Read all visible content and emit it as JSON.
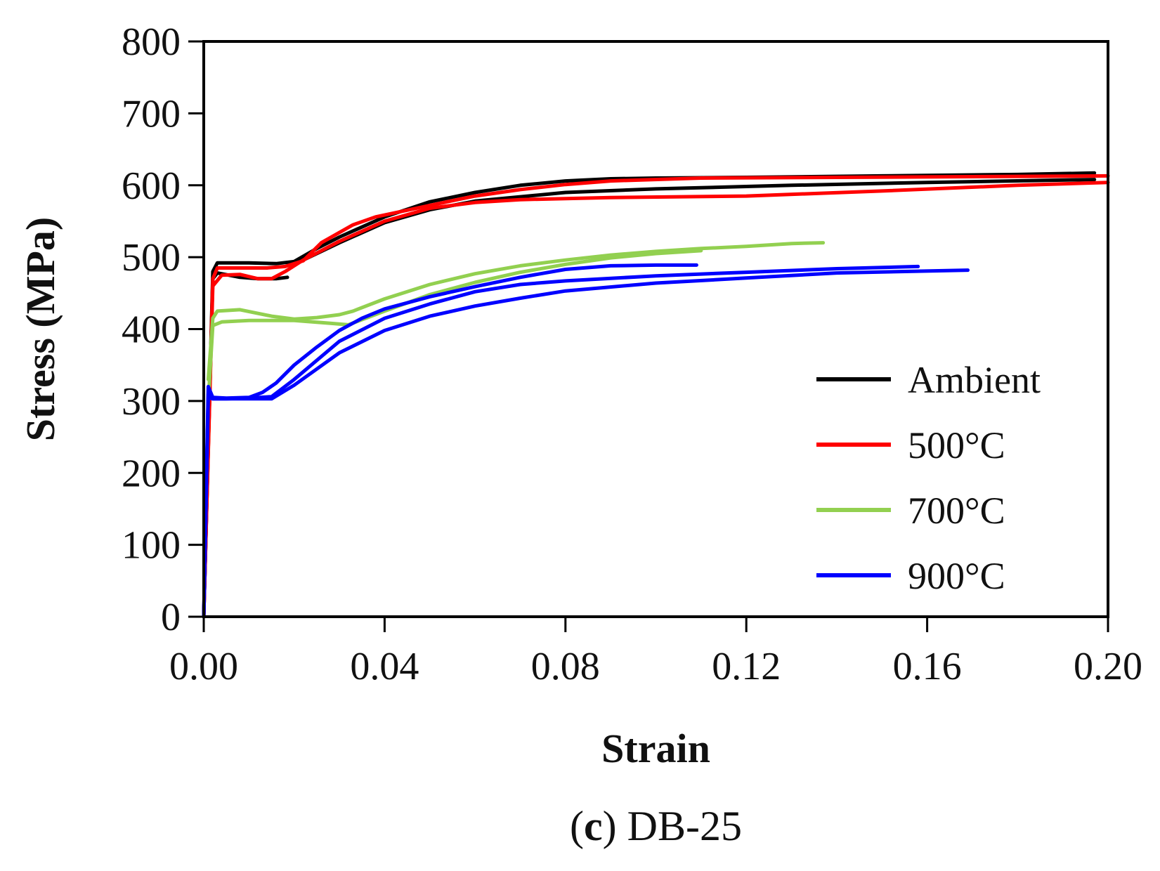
{
  "chart_data": {
    "type": "line",
    "title": "",
    "caption": {
      "open": "(",
      "letter": "c",
      "close": ")",
      "text": " DB-25"
    },
    "xlabel": "Strain",
    "ylabel": "Stress (MPa)",
    "xlim": [
      0,
      0.2
    ],
    "ylim": [
      0,
      800
    ],
    "xticks": [
      0.0,
      0.04,
      0.08,
      0.12,
      0.16,
      0.2
    ],
    "xtick_labels": [
      "0.00",
      "0.04",
      "0.08",
      "0.12",
      "0.16",
      "0.20"
    ],
    "yticks": [
      0,
      100,
      200,
      300,
      400,
      500,
      600,
      700,
      800
    ],
    "ytick_labels": [
      "0",
      "100",
      "200",
      "300",
      "400",
      "500",
      "600",
      "700",
      "800"
    ],
    "grid": false,
    "legend_position": "right",
    "series": [
      {
        "name": "Ambient",
        "color": "#000000",
        "legend": true,
        "x": [
          0.0,
          0.002,
          0.003,
          0.01,
          0.016,
          0.02,
          0.025,
          0.03,
          0.04,
          0.05,
          0.06,
          0.07,
          0.08,
          0.09,
          0.1,
          0.12,
          0.15,
          0.18,
          0.197
        ],
        "y": [
          0,
          480,
          492,
          492,
          491,
          494,
          512,
          528,
          556,
          577,
          590,
          600,
          606,
          609,
          610,
          611,
          613,
          615,
          617
        ]
      },
      {
        "name": "Ambient",
        "color": "#000000",
        "legend": false,
        "x": [
          0.0,
          0.002,
          0.003,
          0.008,
          0.012,
          0.016,
          0.0185
        ],
        "y": [
          0,
          470,
          478,
          472,
          470,
          470,
          472
        ]
      },
      {
        "name": "Ambient",
        "color": "#000000",
        "legend": false,
        "x": [
          0.02,
          0.03,
          0.04,
          0.05,
          0.06,
          0.08,
          0.1,
          0.13,
          0.16,
          0.197
        ],
        "y": [
          490,
          520,
          548,
          566,
          578,
          590,
          595,
          600,
          604,
          608
        ]
      },
      {
        "name": "500°C",
        "color": "#ff0000",
        "legend": true,
        "x": [
          0.0,
          0.002,
          0.003,
          0.008,
          0.014,
          0.018,
          0.022,
          0.026,
          0.033,
          0.038,
          0.05,
          0.06,
          0.07,
          0.08,
          0.09,
          0.11,
          0.14,
          0.17,
          0.2
        ],
        "y": [
          0,
          470,
          485,
          485,
          485,
          487,
          495,
          520,
          545,
          556,
          572,
          585,
          594,
          601,
          606,
          610,
          611,
          612,
          613
        ]
      },
      {
        "name": "500°C",
        "color": "#ff0000",
        "legend": false,
        "x": [
          0.0,
          0.002,
          0.004,
          0.008,
          0.012,
          0.015,
          0.018,
          0.022,
          0.03,
          0.04,
          0.05,
          0.06,
          0.07,
          0.09,
          0.12,
          0.15,
          0.18,
          0.2
        ],
        "y": [
          0,
          460,
          475,
          476,
          470,
          470,
          480,
          496,
          522,
          550,
          568,
          576,
          580,
          583,
          585,
          592,
          600,
          604
        ]
      },
      {
        "name": "700°C",
        "color": "#92d050",
        "legend": true,
        "x": [
          0.001,
          0.002,
          0.003,
          0.008,
          0.015,
          0.02,
          0.025,
          0.03,
          0.033,
          0.04,
          0.05,
          0.06,
          0.07,
          0.08,
          0.09,
          0.1,
          0.11,
          0.12,
          0.13,
          0.137
        ],
        "y": [
          330,
          415,
          425,
          427,
          418,
          414,
          416,
          420,
          425,
          442,
          462,
          477,
          488,
          496,
          503,
          508,
          512,
          515,
          519,
          520
        ]
      },
      {
        "name": "700°C",
        "color": "#92d050",
        "legend": false,
        "x": [
          0.001,
          0.002,
          0.004,
          0.01,
          0.02,
          0.028,
          0.032,
          0.04,
          0.05,
          0.06,
          0.07,
          0.08,
          0.09,
          0.1,
          0.11
        ],
        "y": [
          300,
          405,
          410,
          412,
          412,
          408,
          406,
          425,
          448,
          465,
          479,
          490,
          499,
          505,
          509
        ]
      },
      {
        "name": "900°C",
        "color": "#0000ff",
        "legend": true,
        "x": [
          0.0,
          0.001,
          0.002,
          0.005,
          0.01,
          0.013,
          0.016,
          0.02,
          0.025,
          0.03,
          0.035,
          0.04,
          0.05,
          0.06,
          0.07,
          0.08,
          0.09,
          0.1,
          0.109
        ],
        "y": [
          0,
          320,
          305,
          304,
          305,
          312,
          325,
          350,
          375,
          398,
          415,
          428,
          445,
          459,
          472,
          483,
          488,
          489,
          489
        ]
      },
      {
        "name": "900°C",
        "color": "#0000ff",
        "legend": false,
        "x": [
          0.0,
          0.001,
          0.002,
          0.005,
          0.01,
          0.015,
          0.02,
          0.03,
          0.04,
          0.05,
          0.06,
          0.07,
          0.08,
          0.1,
          0.12,
          0.14,
          0.158
        ],
        "y": [
          0,
          310,
          303,
          303,
          304,
          306,
          330,
          383,
          415,
          435,
          452,
          462,
          467,
          474,
          479,
          484,
          487
        ]
      },
      {
        "name": "900°C",
        "color": "#0000ff",
        "legend": false,
        "x": [
          0.0,
          0.001,
          0.002,
          0.005,
          0.01,
          0.015,
          0.02,
          0.03,
          0.04,
          0.05,
          0.06,
          0.07,
          0.08,
          0.1,
          0.12,
          0.14,
          0.169
        ],
        "y": [
          0,
          305,
          303,
          303,
          303,
          303,
          322,
          367,
          398,
          418,
          432,
          443,
          453,
          464,
          471,
          478,
          482
        ]
      }
    ]
  }
}
